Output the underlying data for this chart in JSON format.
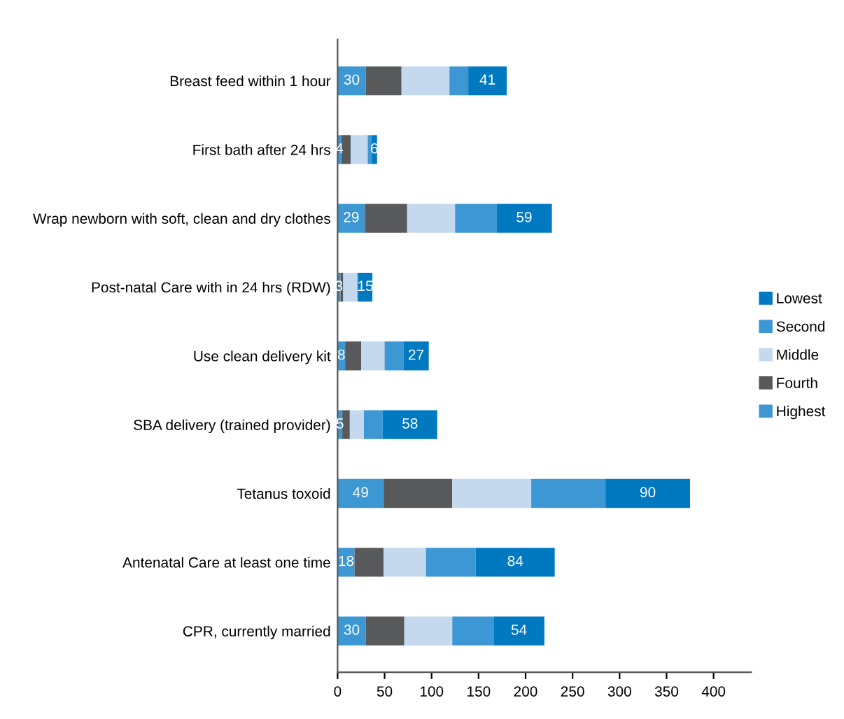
{
  "chart_data": {
    "type": "bar",
    "orientation": "horizontal",
    "stacked": true,
    "categories": [
      "Breast feed within 1 hour",
      "First bath after 24 hrs",
      "Wrap newborn with soft, clean and dry clothes",
      "Post-natal Care with in 24 hrs (RDW)",
      "Use clean delivery kit",
      "SBA delivery (trained provider)",
      "Tetanus toxoid",
      "Antenatal Care at least one time",
      "CPR, currently married"
    ],
    "series": [
      {
        "name": "Highest",
        "color": "#3d97d3",
        "values": [
          30,
          4,
          29,
          3,
          8,
          5,
          49,
          18,
          30
        ],
        "value_labels": [
          "30",
          "4",
          "29",
          "3",
          "8",
          "5",
          "49",
          "18",
          "30"
        ]
      },
      {
        "name": "Fourth",
        "color": "#58595b",
        "values": [
          38,
          10,
          45,
          3,
          17,
          8,
          73,
          31,
          41
        ]
      },
      {
        "name": "Middle",
        "color": "#c5d9ee",
        "values": [
          51,
          18,
          51,
          15,
          25,
          15,
          84,
          45,
          51
        ]
      },
      {
        "name": "Second",
        "color": "#3d97d4",
        "values": [
          20,
          4,
          44,
          1,
          20,
          20,
          79,
          53,
          44
        ]
      },
      {
        "name": "Lowest",
        "color": "#0079c1",
        "values": [
          41,
          6,
          59,
          15,
          27,
          58,
          90,
          84,
          54
        ],
        "value_labels": [
          "41",
          "6",
          "59",
          "15",
          "27",
          "58",
          "90",
          "84",
          "54"
        ]
      }
    ],
    "xlim": [
      0,
      440
    ],
    "xticks": [
      0,
      50,
      100,
      150,
      200,
      250,
      300,
      350,
      400
    ],
    "legend": "right",
    "grid": false
  }
}
